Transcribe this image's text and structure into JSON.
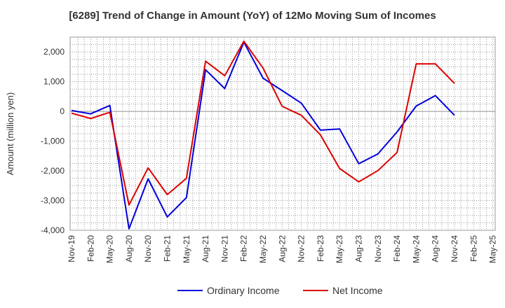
{
  "chart_data": {
    "type": "line",
    "title": "[6289]  Trend of Change in Amount (YoY) of 12Mo Moving Sum of Incomes",
    "ylabel": "Amount (million yen)",
    "xlabel": "",
    "ylim": [
      -4000,
      2500
    ],
    "yticks": [
      2000,
      1000,
      0,
      -1000,
      -2000,
      -3000,
      -4000
    ],
    "ytick_labels": [
      "2,000",
      "1,000",
      "0",
      "-1,000",
      "-2,000",
      "-3,000",
      "-4,000"
    ],
    "x": [
      "Nov-19",
      "Feb-20",
      "May-20",
      "Aug-20",
      "Nov-20",
      "Feb-21",
      "May-21",
      "Aug-21",
      "Nov-21",
      "Feb-22",
      "May-22",
      "Aug-22",
      "Nov-22",
      "Feb-23",
      "May-23",
      "Aug-23",
      "Nov-23",
      "Feb-24",
      "May-24",
      "Aug-24",
      "Nov-24",
      "Feb-25",
      "May-25"
    ],
    "grid": true,
    "legend_position": "bottom",
    "series": [
      {
        "name": "Ordinary Income",
        "color": "#0000dd",
        "values": [
          30,
          -80,
          200,
          -3950,
          -2270,
          -3550,
          -2900,
          1400,
          770,
          2330,
          1120,
          700,
          280,
          -630,
          -590,
          -1760,
          -1430,
          -690,
          180,
          530,
          -130,
          null,
          null
        ]
      },
      {
        "name": "Net Income",
        "color": "#dd0000",
        "values": [
          -60,
          -240,
          -30,
          -3150,
          -1900,
          -2800,
          -2250,
          1690,
          1200,
          2360,
          1460,
          170,
          -130,
          -790,
          -1920,
          -2370,
          -1990,
          -1380,
          1600,
          1600,
          940,
          null,
          null
        ]
      }
    ]
  }
}
